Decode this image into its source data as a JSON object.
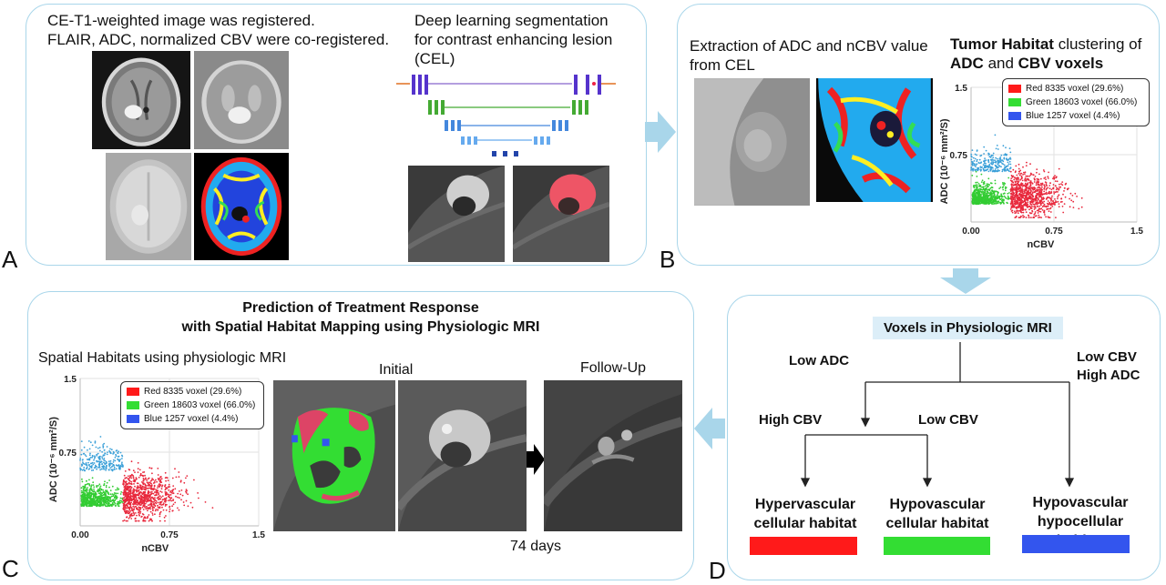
{
  "panelA": {
    "label": "A",
    "header_line1": "CE-T1-weighted image was registered.",
    "header_line2": "FLAIR, ADC, normalized CBV were co-registered.",
    "dl_line1": "Deep learning segmentation",
    "dl_line2": "for contrast enhancing lesion",
    "dl_line3": "(CEL)"
  },
  "panelB": {
    "label": "B",
    "extract_line1": "Extraction of ADC and nCBV value",
    "extract_line2": "from CEL",
    "title_bold1": "Tumor Habitat",
    "title_rest1": " clustering of",
    "title_bold2": "ADC",
    "title_and": " and ",
    "title_bold3": "CBV voxels"
  },
  "panelC": {
    "label": "C",
    "title_line1": "Prediction of Treatment Response",
    "title_line2": "with Spatial Habitat Mapping using Physiologic MRI",
    "subtitle": "Spatial Habitats using physiologic MRI",
    "initial": "Initial",
    "followup": "Follow-Up",
    "days": "74 days"
  },
  "panelD": {
    "label": "D",
    "root": "Voxels in Physiologic MRI",
    "low_adc": "Low ADC",
    "low_cbv_high_adc_1": "Low CBV",
    "low_cbv_high_adc_2": "High ADC",
    "high_cbv": "High CBV",
    "low_cbv": "Low CBV",
    "leaf1_line1": "Hypervascular",
    "leaf1_line2": "cellular habitat",
    "leaf2_line1": "Hypovascular",
    "leaf2_line2": "cellular habitat",
    "leaf3_line1": "Hypovascular",
    "leaf3_line2": "hypocellular habitat",
    "colors": {
      "red": "#ff1a1a",
      "green": "#33dd33",
      "blue": "#3355ee"
    }
  },
  "legend": {
    "red": "Red 8335 voxel (29.6%)",
    "green": "Green 18603 voxel (66.0%)",
    "blue": "Blue 1257 voxel (4.4%)"
  },
  "chart_data": [
    {
      "type": "scatter",
      "xlabel": "nCBV",
      "ylabel": "ADC (10⁻⁶ mm²/S)",
      "xlim": [
        0,
        1.5
      ],
      "ylim": [
        0,
        1.5
      ],
      "x_ticks": [
        "0.00",
        "0.75",
        "1.5"
      ],
      "y_ticks": [
        "0.75",
        "1.5"
      ],
      "legend_placement": "top-right",
      "series": [
        {
          "name": "Red 8335 voxel (29.6%)",
          "color": "#e8283c",
          "voxels": 8335,
          "percent": 29.6
        },
        {
          "name": "Green 18603 voxel (66.0%)",
          "color": "#33cc33",
          "voxels": 18603,
          "percent": 66.0
        },
        {
          "name": "Blue 1257 voxel (4.4%)",
          "color": "#3ba0d8",
          "voxels": 1257,
          "percent": 4.4
        }
      ]
    }
  ]
}
